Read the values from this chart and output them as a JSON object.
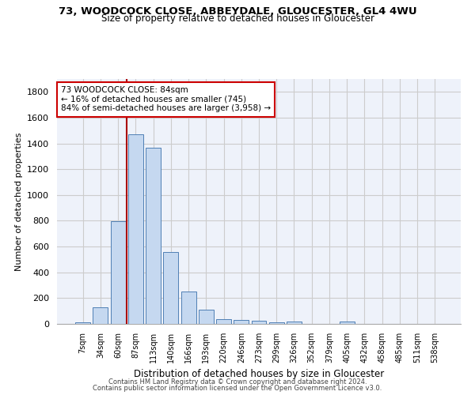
{
  "title1": "73, WOODCOCK CLOSE, ABBEYDALE, GLOUCESTER, GL4 4WU",
  "title2": "Size of property relative to detached houses in Gloucester",
  "xlabel": "Distribution of detached houses by size in Gloucester",
  "ylabel": "Number of detached properties",
  "categories": [
    "7sqm",
    "34sqm",
    "60sqm",
    "87sqm",
    "113sqm",
    "140sqm",
    "166sqm",
    "193sqm",
    "220sqm",
    "246sqm",
    "273sqm",
    "299sqm",
    "326sqm",
    "352sqm",
    "379sqm",
    "405sqm",
    "432sqm",
    "458sqm",
    "485sqm",
    "511sqm",
    "538sqm"
  ],
  "values": [
    10,
    130,
    795,
    1470,
    1365,
    560,
    250,
    108,
    35,
    30,
    25,
    15,
    20,
    0,
    0,
    20,
    0,
    0,
    0,
    0,
    0
  ],
  "bar_color": "#c5d8f0",
  "bar_edge_color": "#4f7fb5",
  "vline_color": "#aa0000",
  "annotation_text": "73 WOODCOCK CLOSE: 84sqm\n← 16% of detached houses are smaller (745)\n84% of semi-detached houses are larger (3,958) →",
  "annotation_box_color": "#cc0000",
  "annotation_text_color": "black",
  "annotation_bg": "white",
  "ylim": [
    0,
    1900
  ],
  "yticks": [
    0,
    200,
    400,
    600,
    800,
    1000,
    1200,
    1400,
    1600,
    1800
  ],
  "grid_color": "#cccccc",
  "bg_color": "#eef2fa",
  "footer1": "Contains HM Land Registry data © Crown copyright and database right 2024.",
  "footer2": "Contains public sector information licensed under the Open Government Licence v3.0."
}
